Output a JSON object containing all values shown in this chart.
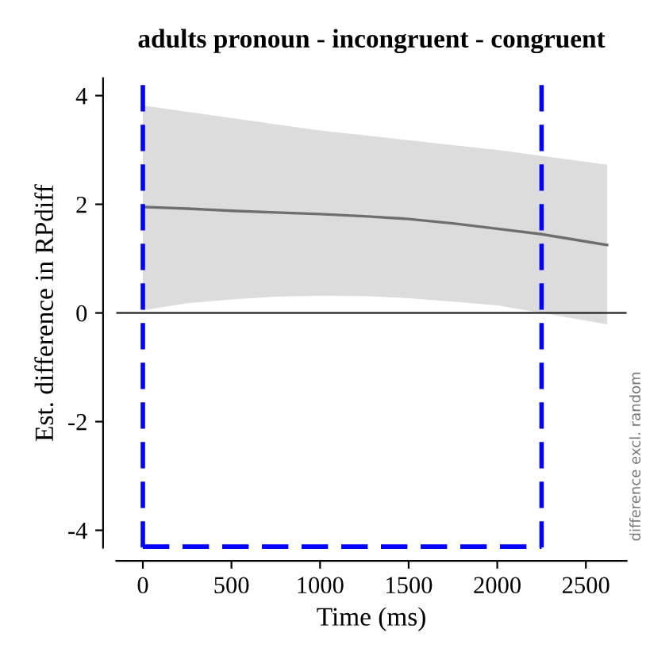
{
  "chart_data": {
    "type": "line",
    "title": "adults pronoun - incongruent - congruent",
    "xlabel": "Time (ms)",
    "ylabel": "Est. difference in RPdiff",
    "x": [
      0,
      250,
      500,
      750,
      1000,
      1250,
      1500,
      1750,
      2000,
      2250,
      2620
    ],
    "series": [
      {
        "color": "#6e6e6e",
        "values": [
          1.95,
          1.92,
          1.88,
          1.85,
          1.82,
          1.78,
          1.73,
          1.65,
          1.55,
          1.45,
          1.25
        ],
        "upper": [
          3.82,
          3.7,
          3.59,
          3.47,
          3.36,
          3.27,
          3.18,
          3.09,
          3.0,
          2.89,
          2.73
        ],
        "lower": [
          0.05,
          0.18,
          0.25,
          0.3,
          0.32,
          0.31,
          0.27,
          0.21,
          0.14,
          0.0,
          -0.21
        ]
      },
      {
        "type": "line",
        "color": "#0000ff",
        "line_style": "dashed",
        "x": [
          0,
          2250
        ],
        "values": [
          -4.3,
          -4.3
        ]
      }
    ],
    "xlim": [
      -150,
      2730
    ],
    "ylim": [
      -4.32,
      4.32
    ],
    "xticks": [
      0,
      500,
      1000,
      1500,
      2000,
      2500
    ],
    "yticks": [
      -4,
      -2,
      0,
      2,
      4
    ],
    "ref_lines": [
      {
        "axis": "y",
        "value": 0,
        "color": "#333333",
        "line_style": "solid"
      },
      {
        "axis": "x",
        "value": 0,
        "color": "#0000ff",
        "line_style": "dashed"
      },
      {
        "axis": "x",
        "value": 2250,
        "color": "#0000ff",
        "line_style": "dashed"
      }
    ],
    "annotations": [
      "difference excl. random"
    ],
    "grid": false,
    "legend": false
  }
}
